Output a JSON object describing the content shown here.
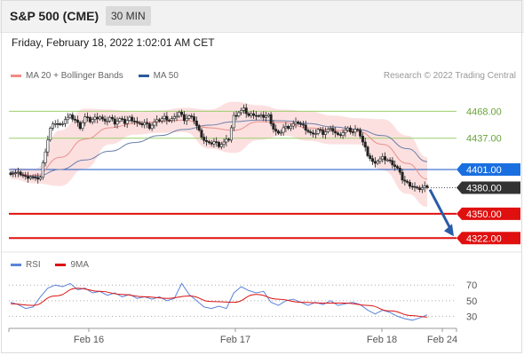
{
  "header": {
    "title": "S&P 500 (CME)",
    "timeframe": "30 MIN",
    "datetime": "Friday, February 18, 2022 1:02:01 AM CET",
    "credit": "Research © 2022 Trading Central"
  },
  "legend_main": [
    {
      "label": "MA 20 + Bollinger Bands",
      "color": "#f28b86"
    },
    {
      "label": "MA 50",
      "color": "#2d5b9a"
    }
  ],
  "legend_rsi": [
    {
      "label": "RSI",
      "color": "#5b84d8"
    },
    {
      "label": "9MA",
      "color": "#dd1111"
    }
  ],
  "chart_data": [
    {
      "type": "candlestick",
      "title": "S&P 500 (CME)",
      "x_ticks": [
        "Feb 16",
        "Feb 17",
        "Feb 18",
        "Feb 24"
      ],
      "ylim": [
        4308,
        4498
      ],
      "levels": [
        {
          "label": "4468.00",
          "value": 4468,
          "kind": "resistance",
          "color": "#9ccf6b"
        },
        {
          "label": "4437.00",
          "value": 4437,
          "kind": "resistance",
          "color": "#9ccf6b"
        },
        {
          "label": "4401.00",
          "value": 4401,
          "kind": "pivot",
          "color": "#1a56c4"
        },
        {
          "label": "4380.00",
          "value": 4380,
          "kind": "last-price",
          "color": "#333333"
        },
        {
          "label": "4350.00",
          "value": 4350,
          "kind": "support",
          "color": "#e01010"
        },
        {
          "label": "4322.00",
          "value": 4322,
          "kind": "support",
          "color": "#e01010"
        }
      ],
      "close_path": [
        [
          0,
          4397
        ],
        [
          4,
          4396
        ],
        [
          6,
          4392
        ],
        [
          8,
          4393
        ],
        [
          10,
          4390
        ],
        [
          12,
          4392
        ],
        [
          14,
          4423
        ],
        [
          16,
          4448
        ],
        [
          18,
          4455
        ],
        [
          20,
          4452
        ],
        [
          22,
          4459
        ],
        [
          24,
          4462
        ],
        [
          26,
          4458
        ],
        [
          28,
          4450
        ],
        [
          30,
          4461
        ],
        [
          32,
          4457
        ],
        [
          34,
          4460
        ],
        [
          36,
          4462
        ],
        [
          38,
          4455
        ],
        [
          40,
          4461
        ],
        [
          42,
          4455
        ],
        [
          44,
          4459
        ],
        [
          46,
          4455
        ],
        [
          48,
          4460
        ],
        [
          50,
          4457
        ],
        [
          52,
          4452
        ],
        [
          54,
          4455
        ],
        [
          56,
          4450
        ],
        [
          58,
          4455
        ],
        [
          60,
          4458
        ],
        [
          62,
          4461
        ],
        [
          64,
          4458
        ],
        [
          66,
          4460
        ],
        [
          68,
          4467
        ],
        [
          70,
          4459
        ],
        [
          72,
          4462
        ],
        [
          74,
          4458
        ],
        [
          76,
          4445
        ],
        [
          78,
          4435
        ],
        [
          80,
          4430
        ],
        [
          82,
          4433
        ],
        [
          84,
          4429
        ],
        [
          86,
          4432
        ],
        [
          88,
          4436
        ],
        [
          90,
          4462
        ],
        [
          92,
          4467
        ],
        [
          94,
          4470
        ],
        [
          96,
          4463
        ],
        [
          98,
          4465
        ],
        [
          100,
          4462
        ],
        [
          102,
          4462
        ],
        [
          104,
          4463
        ],
        [
          106,
          4448
        ],
        [
          108,
          4441
        ],
        [
          110,
          4449
        ],
        [
          112,
          4450
        ],
        [
          114,
          4453
        ],
        [
          116,
          4455
        ],
        [
          118,
          4451
        ],
        [
          120,
          4445
        ],
        [
          122,
          4440
        ],
        [
          124,
          4447
        ],
        [
          126,
          4443
        ],
        [
          128,
          4447
        ],
        [
          130,
          4446
        ],
        [
          132,
          4440
        ],
        [
          134,
          4444
        ],
        [
          136,
          4447
        ],
        [
          138,
          4444
        ],
        [
          140,
          4448
        ],
        [
          142,
          4432
        ],
        [
          144,
          4418
        ],
        [
          146,
          4409
        ],
        [
          148,
          4411
        ],
        [
          150,
          4414
        ],
        [
          152,
          4412
        ],
        [
          154,
          4408
        ],
        [
          156,
          4402
        ],
        [
          158,
          4390
        ],
        [
          160,
          4385
        ],
        [
          162,
          4382
        ],
        [
          164,
          4378
        ],
        [
          166,
          4380
        ],
        [
          168,
          4382
        ]
      ],
      "ma50_path": [
        [
          0,
          4398
        ],
        [
          10,
          4393
        ],
        [
          20,
          4401
        ],
        [
          30,
          4412
        ],
        [
          40,
          4422
        ],
        [
          50,
          4432
        ],
        [
          60,
          4440
        ],
        [
          70,
          4447
        ],
        [
          80,
          4452
        ],
        [
          90,
          4456
        ],
        [
          100,
          4458
        ],
        [
          110,
          4457
        ],
        [
          120,
          4454
        ],
        [
          130,
          4450
        ],
        [
          140,
          4447
        ],
        [
          150,
          4440
        ],
        [
          160,
          4425
        ],
        [
          168,
          4410
        ]
      ],
      "ma20_path": [
        [
          0,
          4397
        ],
        [
          10,
          4394
        ],
        [
          20,
          4415
        ],
        [
          30,
          4436
        ],
        [
          40,
          4449
        ],
        [
          50,
          4454
        ],
        [
          60,
          4456
        ],
        [
          70,
          4458
        ],
        [
          80,
          4449
        ],
        [
          90,
          4446
        ],
        [
          100,
          4456
        ],
        [
          110,
          4455
        ],
        [
          120,
          4449
        ],
        [
          130,
          4446
        ],
        [
          140,
          4445
        ],
        [
          150,
          4430
        ],
        [
          160,
          4408
        ],
        [
          168,
          4390
        ]
      ],
      "bollinger_upper": [
        [
          0,
          4403
        ],
        [
          10,
          4402
        ],
        [
          20,
          4446
        ],
        [
          30,
          4471
        ],
        [
          40,
          4470
        ],
        [
          50,
          4467
        ],
        [
          60,
          4469
        ],
        [
          70,
          4472
        ],
        [
          80,
          4470
        ],
        [
          90,
          4479
        ],
        [
          100,
          4475
        ],
        [
          110,
          4470
        ],
        [
          120,
          4468
        ],
        [
          130,
          4463
        ],
        [
          140,
          4460
        ],
        [
          150,
          4459
        ],
        [
          160,
          4440
        ],
        [
          168,
          4415
        ]
      ],
      "bollinger_lower": [
        [
          0,
          4390
        ],
        [
          10,
          4385
        ],
        [
          20,
          4382
        ],
        [
          30,
          4402
        ],
        [
          40,
          4430
        ],
        [
          50,
          4441
        ],
        [
          60,
          4443
        ],
        [
          70,
          4444
        ],
        [
          80,
          4425
        ],
        [
          90,
          4420
        ],
        [
          100,
          4435
        ],
        [
          110,
          4440
        ],
        [
          120,
          4434
        ],
        [
          130,
          4430
        ],
        [
          140,
          4430
        ],
        [
          150,
          4400
        ],
        [
          160,
          4373
        ],
        [
          168,
          4358
        ]
      ],
      "projection": {
        "from": 4380,
        "to": 4322,
        "direction": "down"
      }
    },
    {
      "type": "line",
      "title": "RSI",
      "x_ticks": [
        "Feb 16",
        "Feb 17",
        "Feb 18",
        "Feb 24"
      ],
      "y_ticks": [
        "70",
        "50",
        "30"
      ],
      "ylim": [
        18,
        85
      ],
      "series": [
        {
          "name": "RSI",
          "values": [
            [
              0,
              48
            ],
            [
              3,
              45
            ],
            [
              6,
              40
            ],
            [
              9,
              42
            ],
            [
              12,
              55
            ],
            [
              15,
              66
            ],
            [
              18,
              70
            ],
            [
              21,
              68
            ],
            [
              24,
              72
            ],
            [
              27,
              64
            ],
            [
              30,
              66
            ],
            [
              33,
              60
            ],
            [
              36,
              62
            ],
            [
              39,
              57
            ],
            [
              42,
              60
            ],
            [
              45,
              55
            ],
            [
              48,
              58
            ],
            [
              51,
              53
            ],
            [
              54,
              55
            ],
            [
              57,
              52
            ],
            [
              60,
              55
            ],
            [
              63,
              50
            ],
            [
              66,
              53
            ],
            [
              69,
              72
            ],
            [
              72,
              58
            ],
            [
              75,
              50
            ],
            [
              78,
              42
            ],
            [
              81,
              40
            ],
            [
              84,
              43
            ],
            [
              87,
              40
            ],
            [
              90,
              60
            ],
            [
              93,
              68
            ],
            [
              96,
              63
            ],
            [
              99,
              60
            ],
            [
              102,
              62
            ],
            [
              105,
              48
            ],
            [
              108,
              44
            ],
            [
              111,
              50
            ],
            [
              114,
              52
            ],
            [
              117,
              48
            ],
            [
              120,
              44
            ],
            [
              123,
              48
            ],
            [
              126,
              45
            ],
            [
              129,
              50
            ],
            [
              132,
              44
            ],
            [
              135,
              46
            ],
            [
              138,
              48
            ],
            [
              141,
              45
            ],
            [
              144,
              38
            ],
            [
              147,
              33
            ],
            [
              150,
              38
            ],
            [
              153,
              35
            ],
            [
              156,
              30
            ],
            [
              159,
              27
            ],
            [
              162,
              25
            ],
            [
              165,
              28
            ],
            [
              168,
              32
            ]
          ]
        },
        {
          "name": "9MA",
          "values": [
            [
              0,
              46
            ],
            [
              9,
              44
            ],
            [
              18,
              56
            ],
            [
              27,
              66
            ],
            [
              36,
              62
            ],
            [
              45,
              58
            ],
            [
              54,
              55
            ],
            [
              63,
              53
            ],
            [
              72,
              56
            ],
            [
              81,
              49
            ],
            [
              90,
              48
            ],
            [
              99,
              58
            ],
            [
              108,
              52
            ],
            [
              117,
              48
            ],
            [
              126,
              47
            ],
            [
              135,
              47
            ],
            [
              144,
              44
            ],
            [
              153,
              37
            ],
            [
              162,
              31
            ],
            [
              168,
              29
            ]
          ]
        }
      ]
    }
  ]
}
